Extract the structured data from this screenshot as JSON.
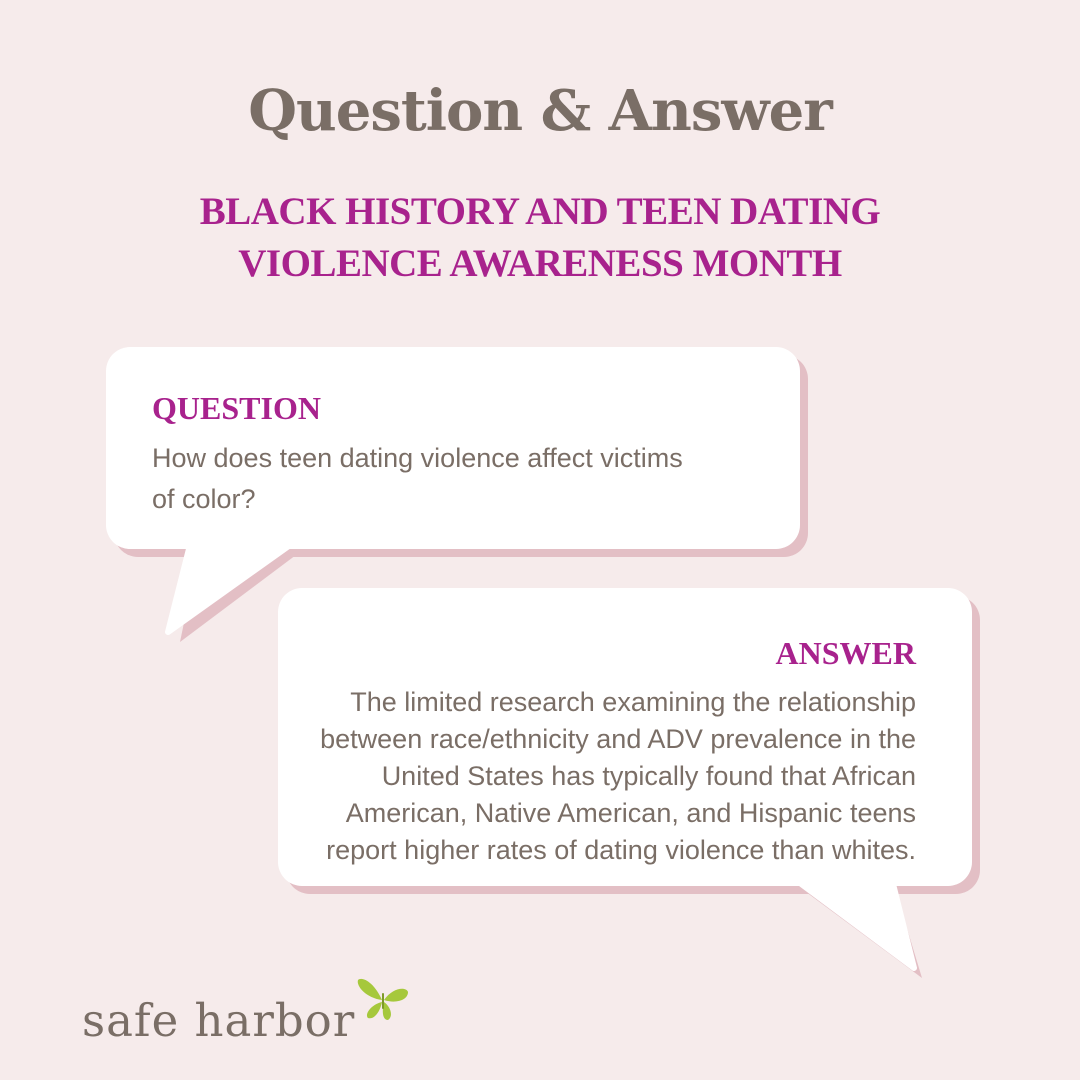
{
  "title": "Question & Answer",
  "subtitle_line1": "BLACK HISTORY AND TEEN DATING",
  "subtitle_line2": "VIOLENCE AWARENESS MONTH",
  "question": {
    "heading": "QUESTION",
    "line1": "How does teen dating violence affect victims",
    "line2": "of color?"
  },
  "answer": {
    "heading": "ANSWER",
    "lines": [
      "The limited research examining the relationship",
      "between race/ethnicity and ADV prevalence in the",
      "United States has typically found that African",
      "American, Native American, and Hispanic teens",
      "report higher rates of dating violence than whites."
    ]
  },
  "logo": {
    "text": "safe harbor",
    "icon": "butterfly-icon"
  },
  "colors": {
    "background": "#f6ebeb",
    "accent": "#a8228d",
    "text": "#7a6e66",
    "bubble_shadow": "#e3bfc5",
    "butterfly": "#a6c83c"
  }
}
